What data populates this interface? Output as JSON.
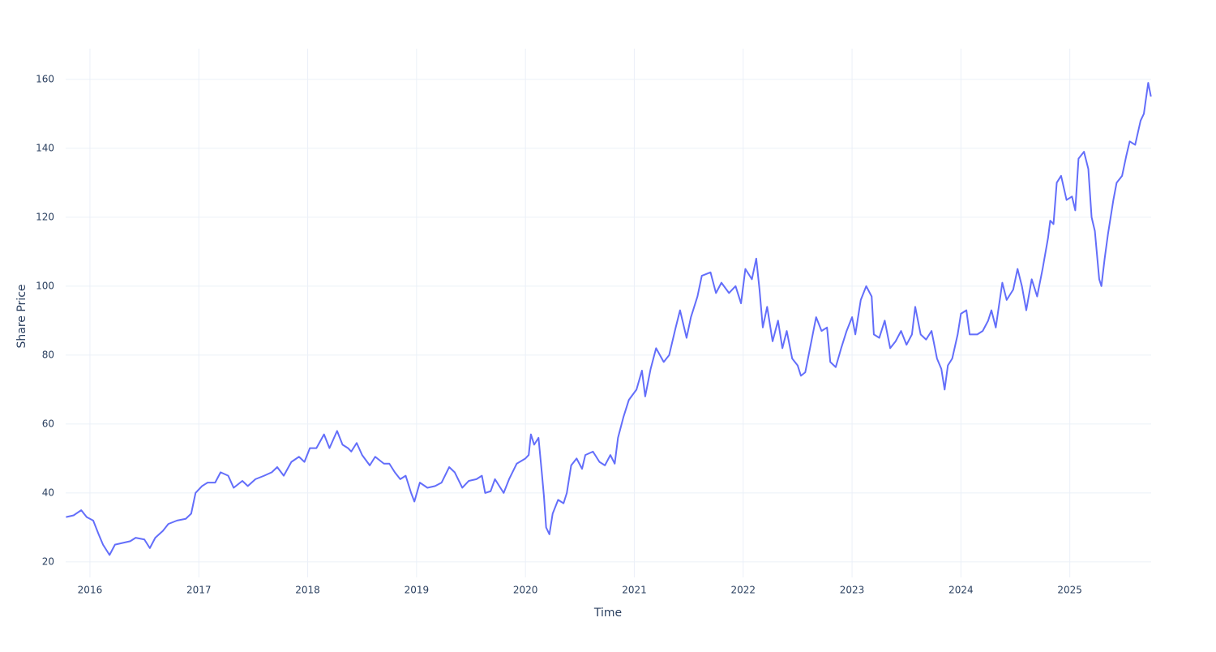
{
  "chart_data": {
    "type": "line",
    "xlabel": "Time",
    "ylabel": "Share Price",
    "color": "#636efa",
    "grid": true,
    "xlim": [
      2015.777,
      2025.747
    ],
    "ylim": [
      15.5,
      168.9
    ],
    "xticks": [
      2016,
      2017,
      2018,
      2019,
      2020,
      2021,
      2022,
      2023,
      2024,
      2025
    ],
    "yticks": [
      20,
      40,
      60,
      80,
      100,
      120,
      140,
      160
    ],
    "x": [
      2015.78,
      2015.85,
      2015.92,
      2015.97,
      2016.03,
      2016.08,
      2016.12,
      2016.18,
      2016.23,
      2016.3,
      2016.37,
      2016.42,
      2016.5,
      2016.55,
      2016.6,
      2016.67,
      2016.72,
      2016.8,
      2016.88,
      2016.93,
      2016.97,
      2017.03,
      2017.08,
      2017.15,
      2017.2,
      2017.27,
      2017.32,
      2017.4,
      2017.45,
      2017.52,
      2017.6,
      2017.67,
      2017.72,
      2017.78,
      2017.85,
      2017.92,
      2017.97,
      2018.02,
      2018.08,
      2018.15,
      2018.2,
      2018.27,
      2018.32,
      2018.37,
      2018.4,
      2018.45,
      2018.5,
      2018.57,
      2018.62,
      2018.7,
      2018.75,
      2018.8,
      2018.85,
      2018.9,
      2018.95,
      2018.98,
      2019.03,
      2019.1,
      2019.17,
      2019.23,
      2019.3,
      2019.35,
      2019.42,
      2019.48,
      2019.55,
      2019.6,
      2019.63,
      2019.68,
      2019.72,
      2019.8,
      2019.85,
      2019.92,
      2020.0,
      2020.03,
      2020.05,
      2020.08,
      2020.12,
      2020.15,
      2020.17,
      2020.19,
      2020.22,
      2020.25,
      2020.3,
      2020.35,
      2020.38,
      2020.42,
      2020.47,
      2020.52,
      2020.55,
      2020.62,
      2020.68,
      2020.73,
      2020.78,
      2020.82,
      2020.85,
      2020.9,
      2020.95,
      2021.02,
      2021.07,
      2021.1,
      2021.15,
      2021.2,
      2021.27,
      2021.32,
      2021.38,
      2021.42,
      2021.48,
      2021.52,
      2021.58,
      2021.62,
      2021.7,
      2021.75,
      2021.8,
      2021.87,
      2021.93,
      2021.98,
      2022.02,
      2022.08,
      2022.12,
      2022.15,
      2022.18,
      2022.22,
      2022.27,
      2022.32,
      2022.36,
      2022.4,
      2022.45,
      2022.5,
      2022.53,
      2022.57,
      2022.62,
      2022.67,
      2022.72,
      2022.77,
      2022.8,
      2022.85,
      2022.9,
      2022.95,
      2023.0,
      2023.03,
      2023.08,
      2023.13,
      2023.18,
      2023.2,
      2023.25,
      2023.3,
      2023.35,
      2023.4,
      2023.45,
      2023.5,
      2023.55,
      2023.58,
      2023.63,
      2023.68,
      2023.73,
      2023.78,
      2023.82,
      2023.85,
      2023.88,
      2023.92,
      2023.97,
      2024.0,
      2024.05,
      2024.08,
      2024.15,
      2024.2,
      2024.25,
      2024.28,
      2024.32,
      2024.38,
      2024.42,
      2024.48,
      2024.52,
      2024.56,
      2024.6,
      2024.65,
      2024.7,
      2024.75,
      2024.8,
      2024.82,
      2024.85,
      2024.88,
      2024.92,
      2024.97,
      2025.02,
      2025.05,
      2025.08,
      2025.13,
      2025.17,
      2025.2,
      2025.23,
      2025.27,
      2025.29,
      2025.32,
      2025.35,
      2025.4,
      2025.43,
      2025.48,
      2025.52,
      2025.55,
      2025.6,
      2025.65,
      2025.68,
      2025.72,
      2025.745
    ],
    "values": [
      33,
      33.5,
      35,
      33,
      32,
      28,
      25,
      22,
      25,
      25.5,
      26,
      27,
      26.5,
      24,
      27,
      29,
      31,
      32,
      32.5,
      34,
      40,
      42,
      43,
      43,
      46,
      45,
      41.5,
      43.5,
      42,
      44,
      45,
      46,
      47.5,
      45,
      49,
      50.5,
      49,
      53,
      53,
      57,
      53,
      58,
      54,
      53,
      52,
      54.5,
      51,
      48,
      50.5,
      48.5,
      48.5,
      46,
      44,
      45,
      40,
      37.5,
      43,
      41.5,
      42,
      43,
      47.5,
      46,
      41.5,
      43.5,
      44,
      45,
      40,
      40.5,
      44,
      40,
      44,
      48.5,
      50,
      51,
      57,
      54,
      56,
      46,
      39,
      30,
      28,
      34,
      38,
      37,
      40,
      48,
      50,
      47,
      51,
      52,
      49,
      48,
      51,
      48.5,
      56,
      62,
      67,
      70,
      75.5,
      68,
      76,
      82,
      78,
      80,
      88,
      93,
      85,
      91,
      97,
      103,
      104,
      98,
      101,
      98,
      100,
      95,
      105,
      102,
      108,
      99,
      88,
      94,
      84,
      90,
      82,
      87,
      79,
      77,
      74,
      75,
      83,
      91,
      87,
      88,
      78,
      76.5,
      82,
      87,
      91,
      86,
      96,
      100,
      97,
      86,
      85,
      90,
      82,
      84,
      87,
      83,
      86,
      94,
      86,
      84.5,
      87,
      79,
      76,
      70,
      77,
      79,
      86,
      92,
      93,
      86,
      86,
      87,
      90,
      93,
      88,
      101,
      96,
      99,
      105,
      100,
      93,
      102,
      97,
      105,
      114,
      119,
      118,
      130,
      132,
      125,
      126,
      122,
      137,
      139,
      134,
      120,
      116,
      102,
      100,
      108,
      115,
      125,
      130,
      132,
      138,
      142,
      141,
      148,
      150,
      159,
      155
    ]
  }
}
